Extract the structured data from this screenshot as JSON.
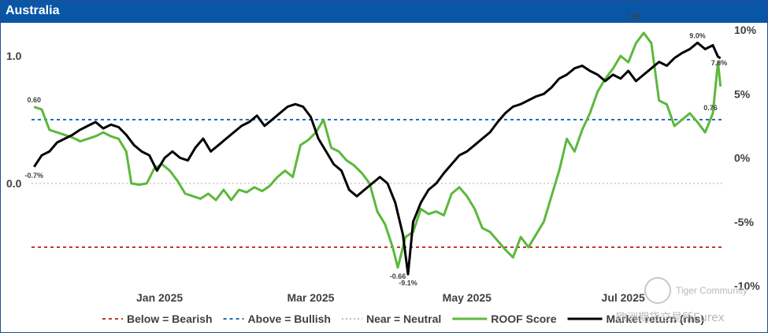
{
  "header": {
    "title": "Australia"
  },
  "chart_data": {
    "type": "line",
    "title": "Australia",
    "x_type": "date",
    "y_left": {
      "ticks": [
        {
          "v": 0.0,
          "label": "0.0"
        },
        {
          "v": 1.0,
          "label": "1.0"
        }
      ],
      "range": [
        -0.85,
        1.25
      ]
    },
    "y_right": {
      "ticks": [
        {
          "v": 10,
          "label": "10%"
        },
        {
          "v": 5,
          "label": "5%"
        },
        {
          "v": 0,
          "label": "0%"
        },
        {
          "v": -5,
          "label": "-5%"
        },
        {
          "v": -10,
          "label": "-10%"
        }
      ],
      "range": [
        -10.2,
        10
      ]
    },
    "x_ticks": [
      {
        "date": "2025-01-01",
        "label": "Jan 2025"
      },
      {
        "date": "2025-03-01",
        "label": "Mar 2025"
      },
      {
        "date": "2025-05-01",
        "label": "May 2025"
      },
      {
        "date": "2025-07-01",
        "label": "Jul 2025"
      }
    ],
    "x_range": [
      "2024-11-12",
      "2025-08-09"
    ],
    "reference_lines": [
      {
        "name": "Below = Bearish",
        "y": -0.5,
        "color": "#c0392b",
        "dash": "4,4"
      },
      {
        "name": "Above = Bullish",
        "y": 0.5,
        "color": "#1f6fb5",
        "dash": "4,4"
      },
      {
        "name": "Near = Neutral",
        "y": 0.0,
        "color": "#bfbfbf",
        "dash": "2,3"
      }
    ],
    "series": [
      {
        "name": "ROOF Score",
        "axis": "left",
        "color": "#5cb83c",
        "points": [
          [
            "2024-11-13",
            0.6
          ],
          [
            "2024-11-16",
            0.58
          ],
          [
            "2024-11-19",
            0.42
          ],
          [
            "2024-11-22",
            0.4
          ],
          [
            "2024-11-25",
            0.38
          ],
          [
            "2024-11-28",
            0.36
          ],
          [
            "2024-12-01",
            0.33
          ],
          [
            "2024-12-04",
            0.35
          ],
          [
            "2024-12-07",
            0.37
          ],
          [
            "2024-12-10",
            0.4
          ],
          [
            "2024-12-13",
            0.37
          ],
          [
            "2024-12-16",
            0.35
          ],
          [
            "2024-12-19",
            0.25
          ],
          [
            "2024-12-21",
            0.0
          ],
          [
            "2024-12-24",
            -0.01
          ],
          [
            "2024-12-27",
            0.0
          ],
          [
            "2024-12-30",
            0.12
          ],
          [
            "2025-01-02",
            0.15
          ],
          [
            "2025-01-05",
            0.1
          ],
          [
            "2025-01-08",
            0.02
          ],
          [
            "2025-01-11",
            -0.08
          ],
          [
            "2025-01-14",
            -0.1
          ],
          [
            "2025-01-17",
            -0.12
          ],
          [
            "2025-01-20",
            -0.08
          ],
          [
            "2025-01-23",
            -0.13
          ],
          [
            "2025-01-26",
            -0.05
          ],
          [
            "2025-01-29",
            -0.13
          ],
          [
            "2025-02-01",
            -0.05
          ],
          [
            "2025-02-04",
            -0.07
          ],
          [
            "2025-02-07",
            -0.03
          ],
          [
            "2025-02-10",
            -0.06
          ],
          [
            "2025-02-13",
            -0.02
          ],
          [
            "2025-02-16",
            0.05
          ],
          [
            "2025-02-19",
            0.1
          ],
          [
            "2025-02-22",
            0.05
          ],
          [
            "2025-02-25",
            0.3
          ],
          [
            "2025-02-28",
            0.34
          ],
          [
            "2025-03-03",
            0.4
          ],
          [
            "2025-03-06",
            0.5
          ],
          [
            "2025-03-09",
            0.28
          ],
          [
            "2025-03-12",
            0.25
          ],
          [
            "2025-03-15",
            0.18
          ],
          [
            "2025-03-18",
            0.14
          ],
          [
            "2025-03-21",
            0.08
          ],
          [
            "2025-03-24",
            0.0
          ],
          [
            "2025-03-27",
            -0.22
          ],
          [
            "2025-03-30",
            -0.32
          ],
          [
            "2025-04-02",
            -0.5
          ],
          [
            "2025-04-04",
            -0.66
          ],
          [
            "2025-04-07",
            -0.42
          ],
          [
            "2025-04-10",
            -0.38
          ],
          [
            "2025-04-13",
            -0.2
          ],
          [
            "2025-04-16",
            -0.24
          ],
          [
            "2025-04-19",
            -0.22
          ],
          [
            "2025-04-22",
            -0.25
          ],
          [
            "2025-04-25",
            -0.08
          ],
          [
            "2025-04-28",
            -0.03
          ],
          [
            "2025-05-01",
            -0.1
          ],
          [
            "2025-05-04",
            -0.2
          ],
          [
            "2025-05-07",
            -0.35
          ],
          [
            "2025-05-10",
            -0.38
          ],
          [
            "2025-05-13",
            -0.45
          ],
          [
            "2025-05-16",
            -0.52
          ],
          [
            "2025-05-19",
            -0.58
          ],
          [
            "2025-05-22",
            -0.42
          ],
          [
            "2025-05-25",
            -0.5
          ],
          [
            "2025-05-28",
            -0.4
          ],
          [
            "2025-05-31",
            -0.3
          ],
          [
            "2025-06-03",
            -0.1
          ],
          [
            "2025-06-06",
            0.1
          ],
          [
            "2025-06-09",
            0.35
          ],
          [
            "2025-06-12",
            0.25
          ],
          [
            "2025-06-15",
            0.42
          ],
          [
            "2025-06-18",
            0.55
          ],
          [
            "2025-06-21",
            0.72
          ],
          [
            "2025-06-24",
            0.82
          ],
          [
            "2025-06-27",
            0.9
          ],
          [
            "2025-06-30",
            1.0
          ],
          [
            "2025-07-03",
            0.95
          ],
          [
            "2025-07-06",
            1.1
          ],
          [
            "2025-07-09",
            1.18
          ],
          [
            "2025-07-12",
            1.1
          ],
          [
            "2025-07-15",
            0.65
          ],
          [
            "2025-07-18",
            0.62
          ],
          [
            "2025-07-21",
            0.45
          ],
          [
            "2025-07-24",
            0.5
          ],
          [
            "2025-07-27",
            0.55
          ],
          [
            "2025-07-30",
            0.48
          ],
          [
            "2025-08-02",
            0.4
          ],
          [
            "2025-08-05",
            0.55
          ],
          [
            "2025-08-07",
            0.95
          ],
          [
            "2025-08-08",
            0.76
          ]
        ]
      },
      {
        "name": "Market return (rhs)",
        "axis": "right",
        "color": "#000000",
        "points": [
          [
            "2024-11-13",
            -0.7
          ],
          [
            "2024-11-16",
            0.2
          ],
          [
            "2024-11-19",
            0.5
          ],
          [
            "2024-11-22",
            1.2
          ],
          [
            "2024-11-25",
            1.5
          ],
          [
            "2024-11-28",
            1.8
          ],
          [
            "2024-12-01",
            2.2
          ],
          [
            "2024-12-04",
            2.5
          ],
          [
            "2024-12-07",
            2.8
          ],
          [
            "2024-12-10",
            2.3
          ],
          [
            "2024-12-13",
            2.6
          ],
          [
            "2024-12-16",
            2.4
          ],
          [
            "2024-12-19",
            1.8
          ],
          [
            "2024-12-22",
            1.0
          ],
          [
            "2024-12-25",
            0.5
          ],
          [
            "2024-12-28",
            0.2
          ],
          [
            "2024-12-31",
            -1.0
          ],
          [
            "2025-01-03",
            0.0
          ],
          [
            "2025-01-06",
            0.5
          ],
          [
            "2025-01-09",
            0.0
          ],
          [
            "2025-01-12",
            -0.2
          ],
          [
            "2025-01-15",
            0.8
          ],
          [
            "2025-01-18",
            1.5
          ],
          [
            "2025-01-21",
            0.5
          ],
          [
            "2025-01-24",
            1.0
          ],
          [
            "2025-01-27",
            1.5
          ],
          [
            "2025-01-30",
            2.0
          ],
          [
            "2025-02-02",
            2.5
          ],
          [
            "2025-02-05",
            2.8
          ],
          [
            "2025-02-08",
            3.3
          ],
          [
            "2025-02-11",
            2.5
          ],
          [
            "2025-02-14",
            3.0
          ],
          [
            "2025-02-17",
            3.5
          ],
          [
            "2025-02-20",
            4.0
          ],
          [
            "2025-02-23",
            4.2
          ],
          [
            "2025-02-26",
            4.0
          ],
          [
            "2025-03-01",
            3.2
          ],
          [
            "2025-03-04",
            1.5
          ],
          [
            "2025-03-07",
            0.5
          ],
          [
            "2025-03-10",
            -0.5
          ],
          [
            "2025-03-13",
            -1.0
          ],
          [
            "2025-03-16",
            -2.5
          ],
          [
            "2025-03-19",
            -3.0
          ],
          [
            "2025-03-22",
            -2.5
          ],
          [
            "2025-03-25",
            -2.0
          ],
          [
            "2025-03-28",
            -1.5
          ],
          [
            "2025-03-31",
            -2.0
          ],
          [
            "2025-04-03",
            -3.5
          ],
          [
            "2025-04-06",
            -6.0
          ],
          [
            "2025-04-08",
            -9.1
          ],
          [
            "2025-04-10",
            -5.0
          ],
          [
            "2025-04-13",
            -3.5
          ],
          [
            "2025-04-16",
            -2.5
          ],
          [
            "2025-04-19",
            -2.0
          ],
          [
            "2025-04-22",
            -1.2
          ],
          [
            "2025-04-25",
            -0.5
          ],
          [
            "2025-04-28",
            0.2
          ],
          [
            "2025-05-01",
            0.5
          ],
          [
            "2025-05-04",
            1.0
          ],
          [
            "2025-05-07",
            1.5
          ],
          [
            "2025-05-10",
            2.0
          ],
          [
            "2025-05-13",
            2.8
          ],
          [
            "2025-05-16",
            3.5
          ],
          [
            "2025-05-19",
            4.0
          ],
          [
            "2025-05-22",
            4.2
          ],
          [
            "2025-05-25",
            4.5
          ],
          [
            "2025-05-28",
            4.8
          ],
          [
            "2025-05-31",
            5.0
          ],
          [
            "2025-06-03",
            5.5
          ],
          [
            "2025-06-06",
            6.2
          ],
          [
            "2025-06-09",
            6.5
          ],
          [
            "2025-06-12",
            7.0
          ],
          [
            "2025-06-15",
            7.2
          ],
          [
            "2025-06-18",
            6.8
          ],
          [
            "2025-06-21",
            6.5
          ],
          [
            "2025-06-24",
            6.0
          ],
          [
            "2025-06-27",
            6.5
          ],
          [
            "2025-06-30",
            6.2
          ],
          [
            "2025-07-03",
            6.8
          ],
          [
            "2025-07-06",
            6.0
          ],
          [
            "2025-07-09",
            6.5
          ],
          [
            "2025-07-12",
            7.0
          ],
          [
            "2025-07-15",
            7.5
          ],
          [
            "2025-07-18",
            7.2
          ],
          [
            "2025-07-21",
            7.8
          ],
          [
            "2025-07-24",
            8.2
          ],
          [
            "2025-07-27",
            8.5
          ],
          [
            "2025-07-30",
            9.0
          ],
          [
            "2025-08-02",
            8.5
          ],
          [
            "2025-08-05",
            8.8
          ],
          [
            "2025-08-07",
            7.9
          ],
          [
            "2025-08-08",
            7.8
          ]
        ]
      }
    ],
    "annotations": [
      {
        "label": "0.60",
        "date": "2024-11-13",
        "v": 0.6,
        "axis": "left",
        "pos": "above"
      },
      {
        "label": "-0.7%",
        "date": "2024-11-13",
        "v": -0.7,
        "axis": "right",
        "pos": "below"
      },
      {
        "label": "-0.66",
        "date": "2025-04-04",
        "v": -0.66,
        "axis": "left",
        "pos": "below"
      },
      {
        "label": "-9.1%",
        "date": "2025-04-08",
        "v": -9.1,
        "axis": "right",
        "pos": "below"
      },
      {
        "label": "1.18",
        "date": "2025-07-09",
        "v": 1.18,
        "axis": "left",
        "pos": "left"
      },
      {
        "label": "9.0%",
        "date": "2025-07-30",
        "v": 9.0,
        "axis": "right",
        "pos": "above"
      },
      {
        "label": "7.8%",
        "date": "2025-08-08",
        "v": 7.8,
        "axis": "right",
        "pos": "below"
      },
      {
        "label": "0.76",
        "date": "2025-08-08",
        "v": 0.76,
        "axis": "left",
        "pos": "left"
      }
    ],
    "legend": {
      "placement": "bottom",
      "items": [
        {
          "label": "Below = Bearish",
          "color": "#c0392b",
          "dash": "4,4"
        },
        {
          "label": "Above = Bullish",
          "color": "#1f6fb5",
          "dash": "4,4"
        },
        {
          "label": "Near = Neutral",
          "color": "#bfbfbf",
          "dash": "2,3"
        },
        {
          "label": "ROOF Score",
          "color": "#5cb83c",
          "dash": ""
        },
        {
          "label": "Market return (rhs)",
          "color": "#000000",
          "dash": ""
        }
      ]
    },
    "grid": false
  },
  "watermark": {
    "line1": "Tiger Community",
    "line2": "欧洲期货交易所Eurex"
  }
}
